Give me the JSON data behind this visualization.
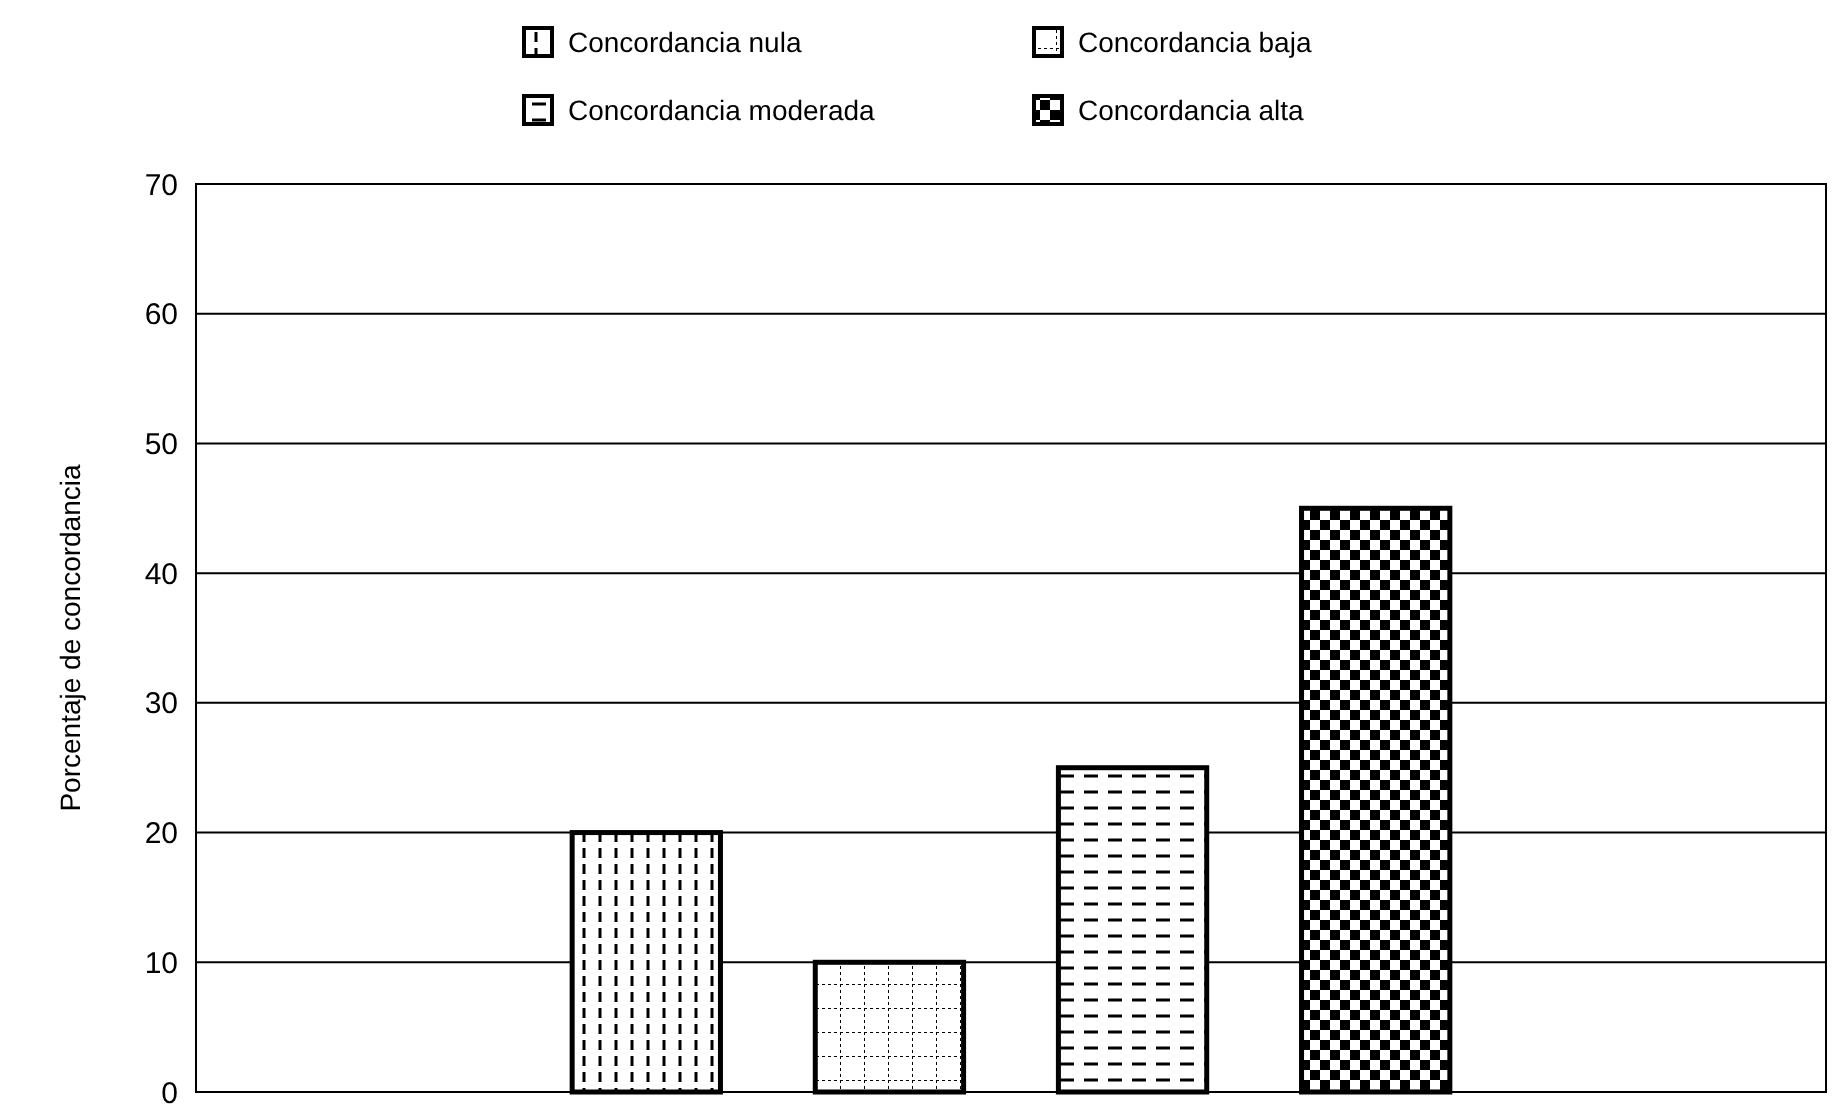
{
  "chart_data": {
    "type": "bar",
    "ylabel": "Porcentaje de concordancia",
    "categories": [
      null
    ],
    "series": [
      {
        "name": "Concordancia nula",
        "color": "#000000",
        "values": [
          20
        ]
      },
      {
        "name": "Concordancia baja",
        "color": "#000000",
        "values": [
          10
        ]
      },
      {
        "name": "Concordancia moderada",
        "color": "#000000",
        "values": [
          25
        ]
      },
      {
        "name": "Concordancia alta",
        "color": "#000000",
        "values": [
          45
        ]
      }
    ],
    "ylim": [
      0,
      70
    ],
    "yticks": [
      0,
      10,
      20,
      30,
      40,
      50,
      60,
      70
    ],
    "grid": "y",
    "legend": "top",
    "tick_labels": "y"
  }
}
